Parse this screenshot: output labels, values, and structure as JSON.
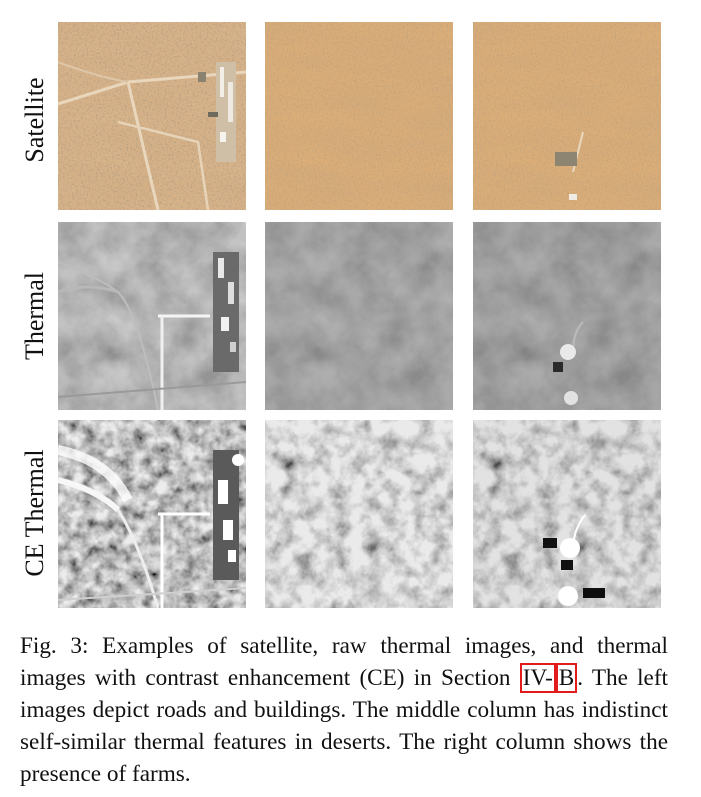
{
  "figure": {
    "row_labels": [
      "Satellite",
      "Thermal",
      "CE Thermal"
    ],
    "caption": {
      "prefix": "Fig. 3: Examples of satellite, raw thermal images, and thermal images with contrast enhancement (CE) in Section ",
      "ref_part1": "IV-",
      "ref_part2": "B",
      "suffix": ". The left images depict roads and buildings. The middle column has indistinct self-similar thermal features in deserts. The right column shows the presence of farms."
    }
  }
}
